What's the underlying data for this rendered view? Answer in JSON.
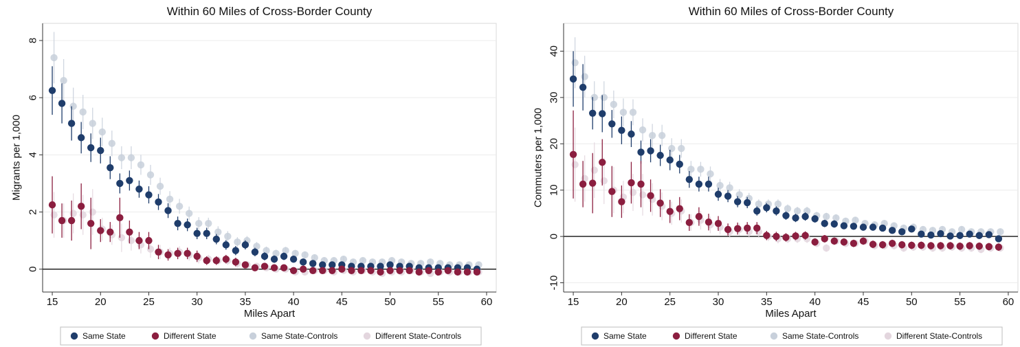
{
  "chart_data": [
    {
      "type": "scatter",
      "title": "Within 60 Miles of Cross-Border County",
      "xlabel": "Miles Apart",
      "ylabel": "Migrants per 1,000",
      "xlim": [
        14,
        61
      ],
      "ylim": [
        -0.8,
        8.6
      ],
      "xticks": [
        15,
        20,
        25,
        30,
        35,
        40,
        45,
        50,
        55,
        60
      ],
      "yticks": [
        0,
        2,
        4,
        6,
        8
      ],
      "grid": "horizontal",
      "zero_line": true,
      "legend_position": "bottom",
      "x": [
        15,
        16,
        17,
        18,
        19,
        20,
        21,
        22,
        23,
        24,
        25,
        26,
        27,
        28,
        29,
        30,
        31,
        32,
        33,
        34,
        35,
        36,
        37,
        38,
        39,
        40,
        41,
        42,
        43,
        44,
        45,
        46,
        47,
        48,
        49,
        50,
        51,
        52,
        53,
        54,
        55,
        56,
        57,
        58,
        59
      ],
      "series": [
        {
          "name": "Same State",
          "color": "#1f3d6b",
          "values": [
            6.25,
            5.8,
            5.1,
            4.6,
            4.25,
            4.15,
            3.55,
            3.0,
            3.1,
            2.8,
            2.6,
            2.35,
            2.05,
            1.6,
            1.55,
            1.25,
            1.25,
            1.05,
            0.85,
            0.65,
            0.85,
            0.6,
            0.45,
            0.35,
            0.45,
            0.35,
            0.25,
            0.2,
            0.15,
            0.15,
            0.15,
            0.1,
            0.1,
            0.1,
            0.1,
            0.15,
            0.1,
            0.1,
            0.05,
            0.05,
            0.05,
            0.05,
            0.05,
            0.05,
            0.0
          ],
          "err": [
            0.85,
            0.7,
            0.6,
            0.55,
            0.5,
            0.45,
            0.4,
            0.35,
            0.35,
            0.3,
            0.3,
            0.28,
            0.26,
            0.24,
            0.22,
            0.2,
            0.2,
            0.18,
            0.17,
            0.16,
            0.16,
            0.15,
            0.14,
            0.13,
            0.13,
            0.12,
            0.12,
            0.11,
            0.11,
            0.1,
            0.1,
            0.1,
            0.1,
            0.1,
            0.1,
            0.1,
            0.1,
            0.1,
            0.1,
            0.1,
            0.1,
            0.1,
            0.1,
            0.1,
            0.1
          ]
        },
        {
          "name": "Different State",
          "color": "#8b1e3f",
          "values": [
            2.25,
            1.7,
            1.7,
            2.2,
            1.6,
            1.35,
            1.3,
            1.8,
            1.3,
            1.0,
            1.0,
            0.6,
            0.5,
            0.55,
            0.55,
            0.45,
            0.3,
            0.3,
            0.35,
            0.25,
            0.15,
            0.05,
            0.1,
            0.05,
            0.05,
            -0.05,
            0.0,
            -0.05,
            -0.05,
            -0.05,
            0.0,
            -0.05,
            -0.05,
            -0.05,
            -0.1,
            -0.05,
            -0.05,
            -0.05,
            -0.1,
            -0.05,
            -0.1,
            -0.05,
            -0.1,
            -0.1,
            -0.1
          ],
          "err": [
            1.0,
            0.6,
            0.7,
            0.8,
            0.9,
            0.4,
            0.35,
            0.7,
            0.4,
            0.3,
            0.3,
            0.25,
            0.2,
            0.2,
            0.2,
            0.2,
            0.15,
            0.15,
            0.15,
            0.15,
            0.12,
            0.12,
            0.1,
            0.1,
            0.1,
            0.1,
            0.1,
            0.1,
            0.1,
            0.1,
            0.1,
            0.1,
            0.1,
            0.1,
            0.1,
            0.1,
            0.1,
            0.1,
            0.1,
            0.1,
            0.1,
            0.1,
            0.1,
            0.1,
            0.1
          ]
        },
        {
          "name": "Same State-Controls",
          "color": "#c8d0db",
          "values": [
            7.4,
            6.6,
            5.7,
            5.5,
            5.1,
            4.8,
            4.4,
            3.9,
            3.9,
            3.65,
            3.3,
            2.9,
            2.45,
            2.2,
            1.95,
            1.6,
            1.6,
            1.3,
            1.15,
            0.95,
            1.0,
            0.8,
            0.65,
            0.55,
            0.65,
            0.55,
            0.5,
            0.4,
            0.3,
            0.3,
            0.35,
            0.25,
            0.3,
            0.25,
            0.25,
            0.3,
            0.25,
            0.2,
            0.2,
            0.25,
            0.2,
            0.15,
            0.15,
            0.15,
            0.15
          ],
          "err": [
            0.9,
            0.75,
            0.65,
            0.6,
            0.55,
            0.5,
            0.45,
            0.4,
            0.4,
            0.35,
            0.35,
            0.3,
            0.28,
            0.26,
            0.24,
            0.22,
            0.2,
            0.2,
            0.18,
            0.17,
            0.16,
            0.15,
            0.14,
            0.13,
            0.13,
            0.12,
            0.12,
            0.11,
            0.11,
            0.1,
            0.1,
            0.1,
            0.1,
            0.1,
            0.1,
            0.1,
            0.1,
            0.1,
            0.1,
            0.1,
            0.1,
            0.1,
            0.1,
            0.1,
            0.1
          ]
        },
        {
          "name": "Different State-Controls",
          "color": "#e3d6de",
          "values": [
            1.9,
            1.7,
            1.95,
            1.9,
            2.0,
            1.4,
            1.2,
            1.1,
            1.0,
            0.85,
            0.7,
            0.6,
            0.55,
            0.6,
            0.5,
            0.4,
            0.35,
            0.3,
            0.3,
            0.2,
            0.15,
            0.1,
            0.05,
            0.0,
            0.0,
            -0.1,
            -0.1,
            -0.05,
            -0.05,
            -0.1,
            -0.05,
            -0.1,
            -0.05,
            -0.1,
            -0.15,
            -0.1,
            -0.1,
            -0.05,
            -0.1,
            -0.15,
            -0.1,
            -0.1,
            -0.1,
            -0.1,
            -0.1
          ],
          "err": [
            0.8,
            0.6,
            0.7,
            0.7,
            0.8,
            0.4,
            0.35,
            0.5,
            0.35,
            0.3,
            0.3,
            0.25,
            0.2,
            0.2,
            0.2,
            0.2,
            0.15,
            0.15,
            0.15,
            0.15,
            0.12,
            0.12,
            0.1,
            0.1,
            0.1,
            0.1,
            0.1,
            0.1,
            0.1,
            0.1,
            0.1,
            0.1,
            0.1,
            0.1,
            0.1,
            0.1,
            0.1,
            0.1,
            0.1,
            0.1,
            0.1,
            0.1,
            0.1,
            0.1,
            0.1
          ]
        }
      ]
    },
    {
      "type": "scatter",
      "title": "Within 60 Miles of Cross-Border County",
      "xlabel": "Miles Apart",
      "ylabel": "Commuters per 1,000",
      "xlim": [
        14,
        61
      ],
      "ylim": [
        -12,
        46
      ],
      "xticks": [
        15,
        20,
        25,
        30,
        35,
        40,
        45,
        50,
        55,
        60
      ],
      "yticks": [
        -10,
        0,
        10,
        20,
        30,
        40
      ],
      "grid": "horizontal",
      "zero_line": true,
      "legend_position": "bottom",
      "x": [
        15,
        16,
        17,
        18,
        19,
        20,
        21,
        22,
        23,
        24,
        25,
        26,
        27,
        28,
        29,
        30,
        31,
        32,
        33,
        34,
        35,
        36,
        37,
        38,
        39,
        40,
        41,
        42,
        43,
        44,
        45,
        46,
        47,
        48,
        49,
        50,
        51,
        52,
        53,
        54,
        55,
        56,
        57,
        58,
        59
      ],
      "series": [
        {
          "name": "Same State",
          "color": "#1f3d6b",
          "values": [
            34.0,
            32.2,
            26.6,
            26.5,
            24.3,
            22.9,
            22.1,
            18.2,
            18.5,
            17.5,
            16.5,
            15.6,
            12.3,
            11.3,
            11.3,
            9.1,
            8.7,
            7.5,
            7.3,
            5.5,
            6.2,
            5.5,
            4.5,
            4.0,
            4.3,
            3.8,
            2.8,
            2.7,
            2.3,
            2.2,
            2.0,
            2.0,
            1.8,
            1.3,
            1.0,
            1.6,
            0.5,
            0.3,
            0.6,
            0.1,
            0.2,
            0.5,
            0.2,
            0.4,
            -0.5
          ],
          "err": [
            6.0,
            5.0,
            3.5,
            4.0,
            3.0,
            3.0,
            2.8,
            2.5,
            2.5,
            2.3,
            2.2,
            2.0,
            1.8,
            1.6,
            1.6,
            1.4,
            1.3,
            1.2,
            1.2,
            1.0,
            1.0,
            1.0,
            0.9,
            0.9,
            0.9,
            0.8,
            0.8,
            0.8,
            0.7,
            0.7,
            0.7,
            0.7,
            0.7,
            0.7,
            0.7,
            0.7,
            0.7,
            0.7,
            0.7,
            0.7,
            0.7,
            0.7,
            0.7,
            0.7,
            0.7
          ]
        },
        {
          "name": "Different State",
          "color": "#8b1e3f",
          "values": [
            17.7,
            11.3,
            11.5,
            16.0,
            9.7,
            7.5,
            11.6,
            11.3,
            8.8,
            7.2,
            5.4,
            6.0,
            3.0,
            4.3,
            3.1,
            2.8,
            1.5,
            1.7,
            1.8,
            1.8,
            0.2,
            0.0,
            -0.2,
            0.1,
            0.2,
            -1.2,
            -0.5,
            -1.0,
            -1.2,
            -1.5,
            -1.0,
            -1.7,
            -1.8,
            -1.5,
            -1.8,
            -1.9,
            -1.9,
            -2.0,
            -2.0,
            -2.0,
            -2.1,
            -2.0,
            -2.1,
            -2.2,
            -2.3
          ],
          "err": [
            9.5,
            5.0,
            6.5,
            5.0,
            5.5,
            3.5,
            4.5,
            5.0,
            3.5,
            3.0,
            2.5,
            2.5,
            1.8,
            2.0,
            1.8,
            1.6,
            1.3,
            1.3,
            1.3,
            1.3,
            1.0,
            1.0,
            0.9,
            0.9,
            0.9,
            0.8,
            0.8,
            0.8,
            0.8,
            0.8,
            0.8,
            0.8,
            0.8,
            0.8,
            0.8,
            0.8,
            0.8,
            0.8,
            0.8,
            0.8,
            0.8,
            0.8,
            0.8,
            0.8,
            0.8
          ]
        },
        {
          "name": "Same State-Controls",
          "color": "#c8d0db",
          "values": [
            37.5,
            34.5,
            30.0,
            30.0,
            28.5,
            26.8,
            26.8,
            23.0,
            21.8,
            21.8,
            19.0,
            19.0,
            14.5,
            14.5,
            13.5,
            11.0,
            10.5,
            9.0,
            8.2,
            7.0,
            7.0,
            7.0,
            6.0,
            5.5,
            5.5,
            4.5,
            4.3,
            4.0,
            3.3,
            3.5,
            2.8,
            2.5,
            2.8,
            2.3,
            1.8,
            2.0,
            1.5,
            1.3,
            1.5,
            1.0,
            1.5,
            1.0,
            1.0,
            1.0,
            1.0
          ],
          "err": [
            5.5,
            4.5,
            3.5,
            3.5,
            3.0,
            3.0,
            2.8,
            2.5,
            2.5,
            2.3,
            2.2,
            2.0,
            1.8,
            1.6,
            1.6,
            1.4,
            1.3,
            1.2,
            1.2,
            1.0,
            1.0,
            1.0,
            0.9,
            0.9,
            0.9,
            0.8,
            0.8,
            0.8,
            0.7,
            0.7,
            0.7,
            0.7,
            0.7,
            0.7,
            0.7,
            0.7,
            0.7,
            0.7,
            0.7,
            0.7,
            0.7,
            0.7,
            0.7,
            0.7,
            0.7
          ]
        },
        {
          "name": "Different State-Controls",
          "color": "#e3d6de",
          "values": [
            15.5,
            12.5,
            14.3,
            12.0,
            10.0,
            8.5,
            9.5,
            9.0,
            8.0,
            6.5,
            5.0,
            5.5,
            3.0,
            3.5,
            2.5,
            2.0,
            1.0,
            1.5,
            1.0,
            1.0,
            0.0,
            -0.5,
            -0.5,
            -0.5,
            -0.5,
            -1.5,
            -2.5,
            -1.0,
            -1.5,
            -1.5,
            -1.0,
            -2.0,
            -2.0,
            -2.0,
            -2.5,
            -2.3,
            -2.3,
            -2.5,
            -2.5,
            -2.3,
            -2.5,
            -2.5,
            -2.8,
            -2.5,
            -2.5
          ],
          "err": [
            8.0,
            5.0,
            6.0,
            5.0,
            5.0,
            3.5,
            4.0,
            4.5,
            3.5,
            3.0,
            2.5,
            2.5,
            1.8,
            2.0,
            1.8,
            1.6,
            1.3,
            1.3,
            1.3,
            1.3,
            1.0,
            1.0,
            0.9,
            0.9,
            0.9,
            0.8,
            0.8,
            0.8,
            0.8,
            0.8,
            0.8,
            0.8,
            0.8,
            0.8,
            0.8,
            0.8,
            0.8,
            0.8,
            0.8,
            0.8,
            0.8,
            0.8,
            0.8,
            0.8,
            0.8
          ]
        }
      ]
    }
  ]
}
